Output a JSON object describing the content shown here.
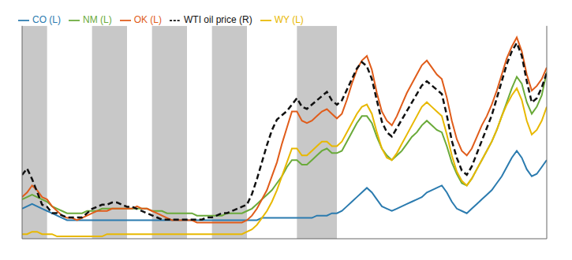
{
  "chart_data": {
    "type": "line",
    "tick_labels": false,
    "grid": false,
    "legend": "upper left",
    "x": [
      0,
      1,
      2,
      3,
      4,
      5,
      6,
      7,
      8,
      9,
      10,
      11,
      12,
      13,
      14,
      15,
      16,
      17,
      18,
      19,
      20,
      21,
      22,
      23,
      24,
      25,
      26,
      27,
      28,
      29,
      30,
      31,
      32,
      33,
      34,
      35,
      36,
      37,
      38,
      39,
      40,
      41,
      42,
      43,
      44,
      45,
      46,
      47,
      48,
      49,
      50,
      51,
      52,
      53,
      54,
      55,
      56,
      57,
      58,
      59,
      60,
      61,
      62,
      63,
      64,
      65,
      66,
      67,
      68,
      69,
      70,
      71,
      72,
      73,
      74,
      75,
      76,
      77,
      78,
      79,
      80,
      81,
      82,
      83,
      84,
      85,
      86,
      87,
      88,
      89,
      90,
      91,
      92,
      93,
      94,
      95,
      96,
      97,
      98,
      99,
      100,
      101,
      102,
      103,
      104,
      105
    ],
    "xlim": [
      0,
      105
    ],
    "ylim": [
      0.0,
      0.92
    ],
    "y2lim": [
      0.0,
      1.0
    ],
    "recession_bands": [
      [
        0,
        5
      ],
      [
        14,
        21
      ],
      [
        26,
        33
      ],
      [
        38,
        45
      ],
      [
        55,
        63
      ]
    ],
    "recession_color": "#c8c8c8",
    "series": [
      {
        "name": "CO (L)",
        "color": "#2b7baf",
        "axis": "y",
        "line_style": "solid",
        "values": [
          0.13,
          0.14,
          0.15,
          0.14,
          0.13,
          0.12,
          0.11,
          0.1,
          0.09,
          0.08,
          0.08,
          0.08,
          0.08,
          0.08,
          0.08,
          0.08,
          0.08,
          0.08,
          0.08,
          0.08,
          0.08,
          0.08,
          0.08,
          0.08,
          0.08,
          0.08,
          0.08,
          0.08,
          0.08,
          0.08,
          0.08,
          0.08,
          0.08,
          0.08,
          0.08,
          0.08,
          0.08,
          0.08,
          0.08,
          0.08,
          0.08,
          0.08,
          0.08,
          0.08,
          0.08,
          0.08,
          0.08,
          0.08,
          0.09,
          0.09,
          0.09,
          0.09,
          0.09,
          0.09,
          0.09,
          0.09,
          0.09,
          0.09,
          0.09,
          0.1,
          0.1,
          0.1,
          0.11,
          0.11,
          0.12,
          0.14,
          0.16,
          0.18,
          0.2,
          0.22,
          0.2,
          0.17,
          0.14,
          0.13,
          0.12,
          0.13,
          0.14,
          0.15,
          0.16,
          0.17,
          0.18,
          0.2,
          0.21,
          0.22,
          0.23,
          0.2,
          0.16,
          0.13,
          0.12,
          0.11,
          0.13,
          0.15,
          0.17,
          0.19,
          0.21,
          0.24,
          0.27,
          0.31,
          0.35,
          0.38,
          0.35,
          0.3,
          0.27,
          0.28,
          0.31,
          0.34
        ]
      },
      {
        "name": "NM (L)",
        "color": "#6aaa3a",
        "axis": "y",
        "line_style": "solid",
        "values": [
          0.17,
          0.18,
          0.19,
          0.18,
          0.17,
          0.16,
          0.14,
          0.13,
          0.12,
          0.11,
          0.11,
          0.11,
          0.11,
          0.12,
          0.12,
          0.12,
          0.13,
          0.13,
          0.13,
          0.13,
          0.13,
          0.13,
          0.13,
          0.13,
          0.13,
          0.13,
          0.12,
          0.12,
          0.12,
          0.11,
          0.11,
          0.11,
          0.11,
          0.11,
          0.11,
          0.1,
          0.1,
          0.1,
          0.1,
          0.1,
          0.1,
          0.11,
          0.11,
          0.11,
          0.11,
          0.12,
          0.13,
          0.15,
          0.17,
          0.19,
          0.21,
          0.24,
          0.27,
          0.31,
          0.34,
          0.34,
          0.32,
          0.32,
          0.34,
          0.36,
          0.38,
          0.39,
          0.37,
          0.37,
          0.38,
          0.42,
          0.46,
          0.5,
          0.53,
          0.53,
          0.5,
          0.44,
          0.39,
          0.36,
          0.34,
          0.36,
          0.38,
          0.41,
          0.44,
          0.46,
          0.49,
          0.51,
          0.49,
          0.47,
          0.46,
          0.4,
          0.33,
          0.28,
          0.24,
          0.23,
          0.26,
          0.3,
          0.34,
          0.38,
          0.42,
          0.47,
          0.53,
          0.59,
          0.65,
          0.7,
          0.67,
          0.59,
          0.54,
          0.57,
          0.62,
          0.72
        ]
      },
      {
        "name": "OK (L)",
        "color": "#e05c1a",
        "axis": "y",
        "line_style": "solid",
        "values": [
          0.18,
          0.2,
          0.23,
          0.21,
          0.18,
          0.17,
          0.14,
          0.12,
          0.1,
          0.09,
          0.09,
          0.08,
          0.09,
          0.1,
          0.11,
          0.12,
          0.12,
          0.12,
          0.13,
          0.13,
          0.13,
          0.13,
          0.13,
          0.14,
          0.13,
          0.13,
          0.12,
          0.11,
          0.1,
          0.09,
          0.08,
          0.08,
          0.08,
          0.08,
          0.08,
          0.07,
          0.07,
          0.07,
          0.07,
          0.07,
          0.07,
          0.07,
          0.07,
          0.07,
          0.07,
          0.08,
          0.1,
          0.13,
          0.17,
          0.21,
          0.27,
          0.33,
          0.41,
          0.48,
          0.55,
          0.55,
          0.51,
          0.5,
          0.51,
          0.53,
          0.55,
          0.56,
          0.54,
          0.52,
          0.54,
          0.6,
          0.67,
          0.73,
          0.77,
          0.79,
          0.73,
          0.63,
          0.55,
          0.51,
          0.49,
          0.53,
          0.58,
          0.63,
          0.67,
          0.71,
          0.75,
          0.77,
          0.74,
          0.71,
          0.69,
          0.61,
          0.51,
          0.43,
          0.38,
          0.36,
          0.39,
          0.44,
          0.49,
          0.53,
          0.58,
          0.64,
          0.71,
          0.78,
          0.83,
          0.87,
          0.81,
          0.71,
          0.64,
          0.66,
          0.69,
          0.74
        ]
      },
      {
        "name": "WY (L)",
        "color": "#e8b800",
        "axis": "y",
        "line_style": "solid",
        "values": [
          0.02,
          0.02,
          0.03,
          0.03,
          0.02,
          0.02,
          0.02,
          0.01,
          0.01,
          0.01,
          0.01,
          0.01,
          0.01,
          0.01,
          0.01,
          0.01,
          0.01,
          0.02,
          0.02,
          0.02,
          0.02,
          0.02,
          0.02,
          0.02,
          0.02,
          0.02,
          0.02,
          0.02,
          0.02,
          0.02,
          0.02,
          0.02,
          0.02,
          0.02,
          0.02,
          0.02,
          0.02,
          0.02,
          0.02,
          0.02,
          0.02,
          0.02,
          0.02,
          0.02,
          0.02,
          0.03,
          0.04,
          0.06,
          0.09,
          0.12,
          0.16,
          0.21,
          0.27,
          0.33,
          0.39,
          0.39,
          0.36,
          0.36,
          0.38,
          0.4,
          0.42,
          0.42,
          0.4,
          0.4,
          0.42,
          0.46,
          0.5,
          0.54,
          0.57,
          0.58,
          0.54,
          0.46,
          0.39,
          0.35,
          0.34,
          0.37,
          0.41,
          0.45,
          0.49,
          0.53,
          0.57,
          0.59,
          0.57,
          0.55,
          0.53,
          0.45,
          0.36,
          0.29,
          0.25,
          0.23,
          0.26,
          0.3,
          0.34,
          0.38,
          0.42,
          0.47,
          0.53,
          0.58,
          0.62,
          0.65,
          0.6,
          0.51,
          0.45,
          0.47,
          0.51,
          0.57
        ]
      },
      {
        "name": "WTI oil price (R)",
        "color": "#111111",
        "axis": "y2",
        "line_style": "dashed",
        "values": [
          0.3,
          0.33,
          0.28,
          0.22,
          0.16,
          0.15,
          0.12,
          0.12,
          0.11,
          0.1,
          0.1,
          0.1,
          0.1,
          0.12,
          0.14,
          0.15,
          0.16,
          0.16,
          0.17,
          0.17,
          0.16,
          0.15,
          0.15,
          0.14,
          0.13,
          0.12,
          0.11,
          0.1,
          0.09,
          0.09,
          0.09,
          0.09,
          0.09,
          0.09,
          0.09,
          0.09,
          0.09,
          0.1,
          0.1,
          0.11,
          0.12,
          0.12,
          0.13,
          0.14,
          0.15,
          0.16,
          0.21,
          0.28,
          0.36,
          0.44,
          0.51,
          0.56,
          0.58,
          0.6,
          0.63,
          0.66,
          0.62,
          0.61,
          0.63,
          0.65,
          0.67,
          0.69,
          0.65,
          0.63,
          0.65,
          0.7,
          0.75,
          0.8,
          0.83,
          0.81,
          0.75,
          0.65,
          0.55,
          0.5,
          0.48,
          0.52,
          0.56,
          0.6,
          0.64,
          0.68,
          0.72,
          0.74,
          0.72,
          0.7,
          0.68,
          0.58,
          0.46,
          0.38,
          0.32,
          0.3,
          0.34,
          0.4,
          0.46,
          0.52,
          0.58,
          0.66,
          0.74,
          0.82,
          0.88,
          0.92,
          0.86,
          0.74,
          0.64,
          0.66,
          0.71,
          0.78
        ]
      }
    ]
  }
}
